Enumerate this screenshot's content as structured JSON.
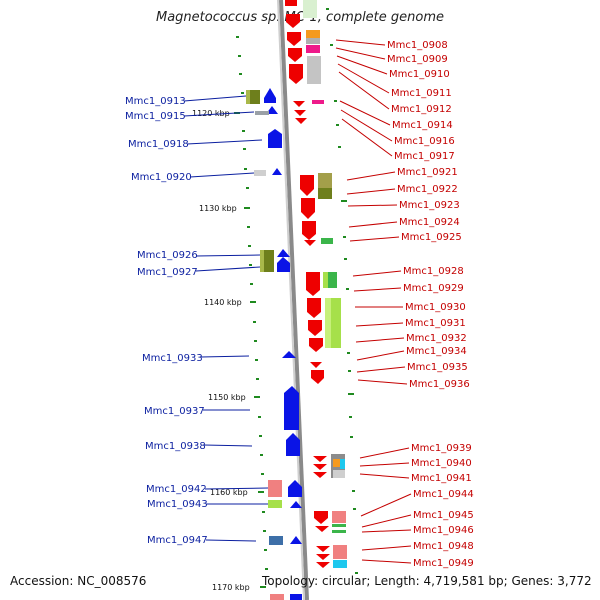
{
  "title": "Magnetococcus sp. MC-1, complete genome",
  "footer": {
    "accession": "Accession: NC_008576",
    "topology": "Topology: circular; Length: 4,719,581 bp; Genes: 3,772"
  },
  "kbp_labels": [
    "1120 kbp",
    "1130 kbp",
    "1140 kbp",
    "1150 kbp",
    "1160 kbp",
    "1170 kbp"
  ],
  "left_genes": [
    "Mmc1_0913",
    "Mmc1_0915",
    "Mmc1_0918",
    "Mmc1_0920",
    "Mmc1_0926",
    "Mmc1_0927",
    "Mmc1_0933",
    "Mmc1_0937",
    "Mmc1_0938",
    "Mmc1_0942",
    "Mmc1_0943",
    "Mmc1_0947"
  ],
  "right_genes": [
    "Mmc1_0908",
    "Mmc1_0909",
    "Mmc1_0910",
    "Mmc1_0911",
    "Mmc1_0912",
    "Mmc1_0914",
    "Mmc1_0916",
    "Mmc1_0917",
    "Mmc1_0921",
    "Mmc1_0922",
    "Mmc1_0923",
    "Mmc1_0924",
    "Mmc1_0925",
    "Mmc1_0928",
    "Mmc1_0929",
    "Mmc1_0930",
    "Mmc1_0931",
    "Mmc1_0932",
    "Mmc1_0934",
    "Mmc1_0935",
    "Mmc1_0936",
    "Mmc1_0939",
    "Mmc1_0940",
    "Mmc1_0941",
    "Mmc1_0944",
    "Mmc1_0945",
    "Mmc1_0946",
    "Mmc1_0948",
    "Mmc1_0949"
  ],
  "colors": {
    "forward_gene": "#0a14e6",
    "reverse_gene": "#ee0000",
    "backbone": "#8a8a8a",
    "tick": "#1f8a1f",
    "left_label": "#0b1fa0",
    "right_label": "#c40000"
  }
}
